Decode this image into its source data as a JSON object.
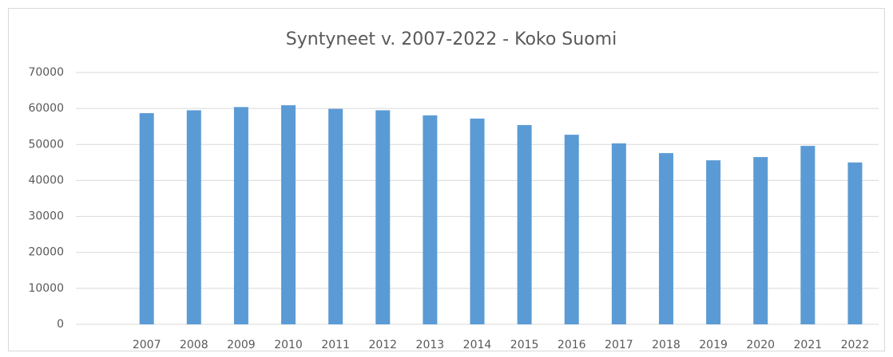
{
  "chart_data": {
    "type": "bar",
    "title": "Syntyneet v. 2007-2022 - Koko Suomi",
    "categories": [
      null,
      "2007",
      "2008",
      "2009",
      "2010",
      "2011",
      "2012",
      "2013",
      "2014",
      "2015",
      "2016",
      "2017",
      "2018",
      "2019",
      "2020",
      "2021",
      "2022"
    ],
    "values": [
      null,
      58700,
      59500,
      60400,
      60900,
      59900,
      59500,
      58100,
      57200,
      55400,
      52700,
      50300,
      47600,
      45600,
      46500,
      49600,
      45000
    ],
    "color": "#5b9bd5",
    "ylim": [
      0,
      70000
    ],
    "yticks": [
      0,
      10000,
      20000,
      30000,
      40000,
      50000,
      60000,
      70000
    ],
    "grid": true
  }
}
